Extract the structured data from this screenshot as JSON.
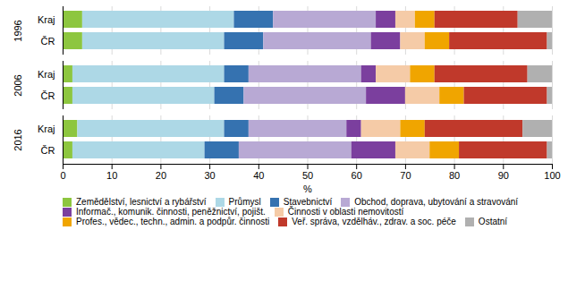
{
  "chart_data": {
    "type": "bar",
    "orientation": "horizontal",
    "stacked": true,
    "categories": [
      "Kraj",
      "ČR",
      "Kraj",
      "ČR",
      "Kraj",
      "ČR"
    ],
    "groups": [
      "1996",
      "1996",
      "2006",
      "2006",
      "2016",
      "2016"
    ],
    "series": [
      {
        "name": "Zemědělství, lesnictví a rybářství",
        "color": "#8dc63f",
        "values": [
          4,
          4,
          2,
          2,
          3,
          2
        ]
      },
      {
        "name": "Průmysl",
        "color": "#add8e6",
        "values": [
          31,
          29,
          31,
          29,
          30,
          27
        ]
      },
      {
        "name": "Stavebnictví",
        "color": "#3572b0",
        "values": [
          8,
          8,
          5,
          6,
          5,
          7
        ]
      },
      {
        "name": "Obchod, doprava, ubytování a stravování",
        "color": "#b8a9d4",
        "values": [
          21,
          22,
          23,
          25,
          20,
          23
        ]
      },
      {
        "name": "Informač., komunik. činnosti, peněžnictví, pojišt.",
        "color": "#7b3f9e",
        "values": [
          4,
          6,
          3,
          8,
          3,
          9
        ]
      },
      {
        "name": "Činnosti v oblasti nemovitostí",
        "color": "#f5cba7",
        "values": [
          4,
          5,
          7,
          7,
          8,
          7
        ]
      },
      {
        "name": "Profes., vědec., techn., admin. a podpůr. činnosti",
        "color": "#f0a500",
        "values": [
          4,
          5,
          5,
          5,
          5,
          6
        ]
      },
      {
        "name": "Veř. správa, vzdělháv., zdrav. a soc. péče",
        "color": "#c0392b",
        "values": [
          17,
          20,
          19,
          17,
          20,
          18
        ]
      },
      {
        "name": "Ostatní",
        "color": "#b0b0b0",
        "values": [
          7,
          1,
          5,
          1,
          6,
          1
        ]
      }
    ],
    "xlabel": "%",
    "xlim": [
      0,
      100
    ],
    "xticks": [
      0,
      10,
      20,
      30,
      40,
      50,
      60,
      70,
      80,
      90,
      100
    ],
    "grid": true,
    "legend": "bottom"
  }
}
